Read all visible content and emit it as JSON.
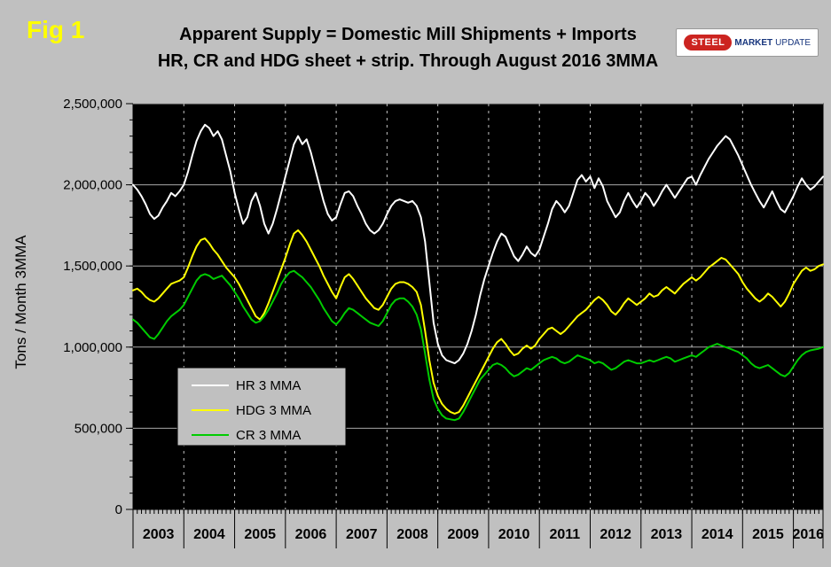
{
  "header": {
    "fig_label": "Fig 1",
    "title_line1": "Apparent Supply = Domestic Mill Shipments + Imports",
    "title_line2": "HR, CR and HDG sheet + strip. Through August 2016 3MMA"
  },
  "logo": {
    "steel": "STEEL",
    "market": "MARKET",
    "update": "UPDATE"
  },
  "colors": {
    "page_bg": "#c0c0c0",
    "plot_bg": "#000000",
    "hr_line": "#ffffff",
    "hdg_line": "#ffff00",
    "cr_line": "#00cc00",
    "fig_label": "#ffff00",
    "logo_red": "#cc2420",
    "logo_blue": "#17357d"
  },
  "chart_data": {
    "type": "line",
    "title": "Apparent Supply = Domestic Mill Shipments + Imports",
    "subtitle": "HR, CR and HDG sheet + strip. Through August 2016 3MMA",
    "ylabel": "Tons / Month 3MMA",
    "ylim": [
      0,
      2500000
    ],
    "ytick_step": 500000,
    "ytick_minor_step": 100000,
    "x_start": "2003-01",
    "x_end": "2016-08",
    "years": [
      "2003",
      "2004",
      "2005",
      "2006",
      "2007",
      "2008",
      "2009",
      "2010",
      "2011",
      "2012",
      "2013",
      "2014",
      "2015",
      "2016"
    ],
    "grid": {
      "horizontal": "solid",
      "vertical": "dashed-yearly"
    },
    "legend": {
      "position": "inside lower-left"
    },
    "plot_bg": "#000000",
    "series": [
      {
        "name": "HR 3 MMA",
        "color": "#ffffff",
        "values": [
          2000000,
          1970000,
          1930000,
          1880000,
          1820000,
          1790000,
          1810000,
          1860000,
          1900000,
          1950000,
          1930000,
          1960000,
          2000000,
          2080000,
          2180000,
          2270000,
          2330000,
          2370000,
          2350000,
          2300000,
          2330000,
          2280000,
          2180000,
          2080000,
          1950000,
          1850000,
          1760000,
          1800000,
          1900000,
          1950000,
          1870000,
          1760000,
          1700000,
          1760000,
          1850000,
          1950000,
          2050000,
          2150000,
          2250000,
          2300000,
          2250000,
          2280000,
          2200000,
          2100000,
          2000000,
          1900000,
          1820000,
          1780000,
          1800000,
          1880000,
          1950000,
          1960000,
          1930000,
          1870000,
          1820000,
          1760000,
          1720000,
          1700000,
          1720000,
          1760000,
          1820000,
          1870000,
          1900000,
          1910000,
          1900000,
          1890000,
          1900000,
          1870000,
          1800000,
          1650000,
          1400000,
          1150000,
          1020000,
          950000,
          920000,
          910000,
          900000,
          920000,
          960000,
          1020000,
          1100000,
          1200000,
          1320000,
          1420000,
          1500000,
          1580000,
          1650000,
          1700000,
          1680000,
          1620000,
          1560000,
          1530000,
          1570000,
          1620000,
          1580000,
          1560000,
          1600000,
          1680000,
          1760000,
          1850000,
          1900000,
          1870000,
          1830000,
          1870000,
          1950000,
          2030000,
          2060000,
          2020000,
          2050000,
          1980000,
          2040000,
          1990000,
          1900000,
          1850000,
          1800000,
          1830000,
          1900000,
          1950000,
          1900000,
          1860000,
          1900000,
          1950000,
          1920000,
          1870000,
          1910000,
          1960000,
          2000000,
          1960000,
          1920000,
          1960000,
          2000000,
          2040000,
          2050000,
          2000000,
          2060000,
          2110000,
          2160000,
          2200000,
          2240000,
          2270000,
          2300000,
          2280000,
          2230000,
          2180000,
          2120000,
          2060000,
          2000000,
          1950000,
          1900000,
          1860000,
          1910000,
          1960000,
          1900000,
          1850000,
          1830000,
          1880000,
          1930000,
          1990000,
          2040000,
          2000000,
          1970000,
          1990000,
          2020000,
          2050000
        ]
      },
      {
        "name": "HDG 3 MMA",
        "color": "#ffff00",
        "values": [
          1350000,
          1360000,
          1340000,
          1310000,
          1290000,
          1280000,
          1300000,
          1330000,
          1360000,
          1390000,
          1400000,
          1410000,
          1430000,
          1490000,
          1560000,
          1620000,
          1660000,
          1670000,
          1640000,
          1600000,
          1570000,
          1530000,
          1490000,
          1460000,
          1430000,
          1390000,
          1340000,
          1290000,
          1240000,
          1190000,
          1170000,
          1210000,
          1270000,
          1340000,
          1410000,
          1480000,
          1550000,
          1630000,
          1700000,
          1720000,
          1690000,
          1650000,
          1600000,
          1550000,
          1500000,
          1440000,
          1390000,
          1340000,
          1300000,
          1370000,
          1430000,
          1450000,
          1420000,
          1380000,
          1340000,
          1300000,
          1270000,
          1240000,
          1230000,
          1260000,
          1310000,
          1360000,
          1390000,
          1400000,
          1400000,
          1390000,
          1370000,
          1340000,
          1260000,
          1100000,
          920000,
          780000,
          700000,
          650000,
          620000,
          600000,
          590000,
          600000,
          640000,
          690000,
          740000,
          790000,
          840000,
          890000,
          940000,
          990000,
          1030000,
          1050000,
          1020000,
          980000,
          950000,
          960000,
          990000,
          1010000,
          990000,
          1010000,
          1050000,
          1080000,
          1110000,
          1120000,
          1100000,
          1080000,
          1100000,
          1130000,
          1160000,
          1190000,
          1210000,
          1230000,
          1260000,
          1290000,
          1310000,
          1290000,
          1260000,
          1220000,
          1200000,
          1230000,
          1270000,
          1300000,
          1280000,
          1260000,
          1280000,
          1300000,
          1330000,
          1310000,
          1320000,
          1350000,
          1370000,
          1350000,
          1330000,
          1360000,
          1390000,
          1410000,
          1430000,
          1410000,
          1430000,
          1460000,
          1490000,
          1510000,
          1530000,
          1550000,
          1540000,
          1510000,
          1480000,
          1450000,
          1400000,
          1360000,
          1330000,
          1300000,
          1280000,
          1300000,
          1330000,
          1310000,
          1280000,
          1250000,
          1280000,
          1330000,
          1390000,
          1430000,
          1470000,
          1490000,
          1470000,
          1480000,
          1500000,
          1510000
        ]
      },
      {
        "name": "CR 3 MMA",
        "color": "#00cc00",
        "values": [
          1170000,
          1150000,
          1120000,
          1090000,
          1060000,
          1050000,
          1080000,
          1120000,
          1160000,
          1190000,
          1210000,
          1230000,
          1260000,
          1310000,
          1360000,
          1410000,
          1440000,
          1450000,
          1440000,
          1420000,
          1430000,
          1440000,
          1410000,
          1380000,
          1340000,
          1300000,
          1250000,
          1210000,
          1170000,
          1150000,
          1160000,
          1190000,
          1230000,
          1280000,
          1330000,
          1390000,
          1430000,
          1460000,
          1470000,
          1450000,
          1430000,
          1400000,
          1370000,
          1330000,
          1290000,
          1240000,
          1200000,
          1160000,
          1140000,
          1170000,
          1210000,
          1240000,
          1230000,
          1210000,
          1190000,
          1170000,
          1150000,
          1140000,
          1130000,
          1160000,
          1210000,
          1260000,
          1290000,
          1300000,
          1300000,
          1280000,
          1250000,
          1200000,
          1110000,
          960000,
          800000,
          680000,
          620000,
          580000,
          560000,
          555000,
          550000,
          560000,
          600000,
          650000,
          700000,
          750000,
          800000,
          830000,
          860000,
          890000,
          900000,
          890000,
          870000,
          840000,
          820000,
          830000,
          850000,
          870000,
          860000,
          880000,
          900000,
          920000,
          930000,
          940000,
          930000,
          910000,
          900000,
          910000,
          930000,
          950000,
          940000,
          930000,
          920000,
          900000,
          910000,
          900000,
          880000,
          860000,
          870000,
          890000,
          910000,
          920000,
          910000,
          900000,
          900000,
          910000,
          920000,
          910000,
          920000,
          930000,
          940000,
          930000,
          910000,
          920000,
          930000,
          940000,
          950000,
          940000,
          960000,
          980000,
          1000000,
          1010000,
          1020000,
          1010000,
          1000000,
          990000,
          980000,
          970000,
          950000,
          930000,
          900000,
          880000,
          870000,
          880000,
          890000,
          870000,
          850000,
          830000,
          820000,
          840000,
          880000,
          920000,
          950000,
          970000,
          980000,
          985000,
          990000,
          1000000
        ]
      }
    ]
  }
}
